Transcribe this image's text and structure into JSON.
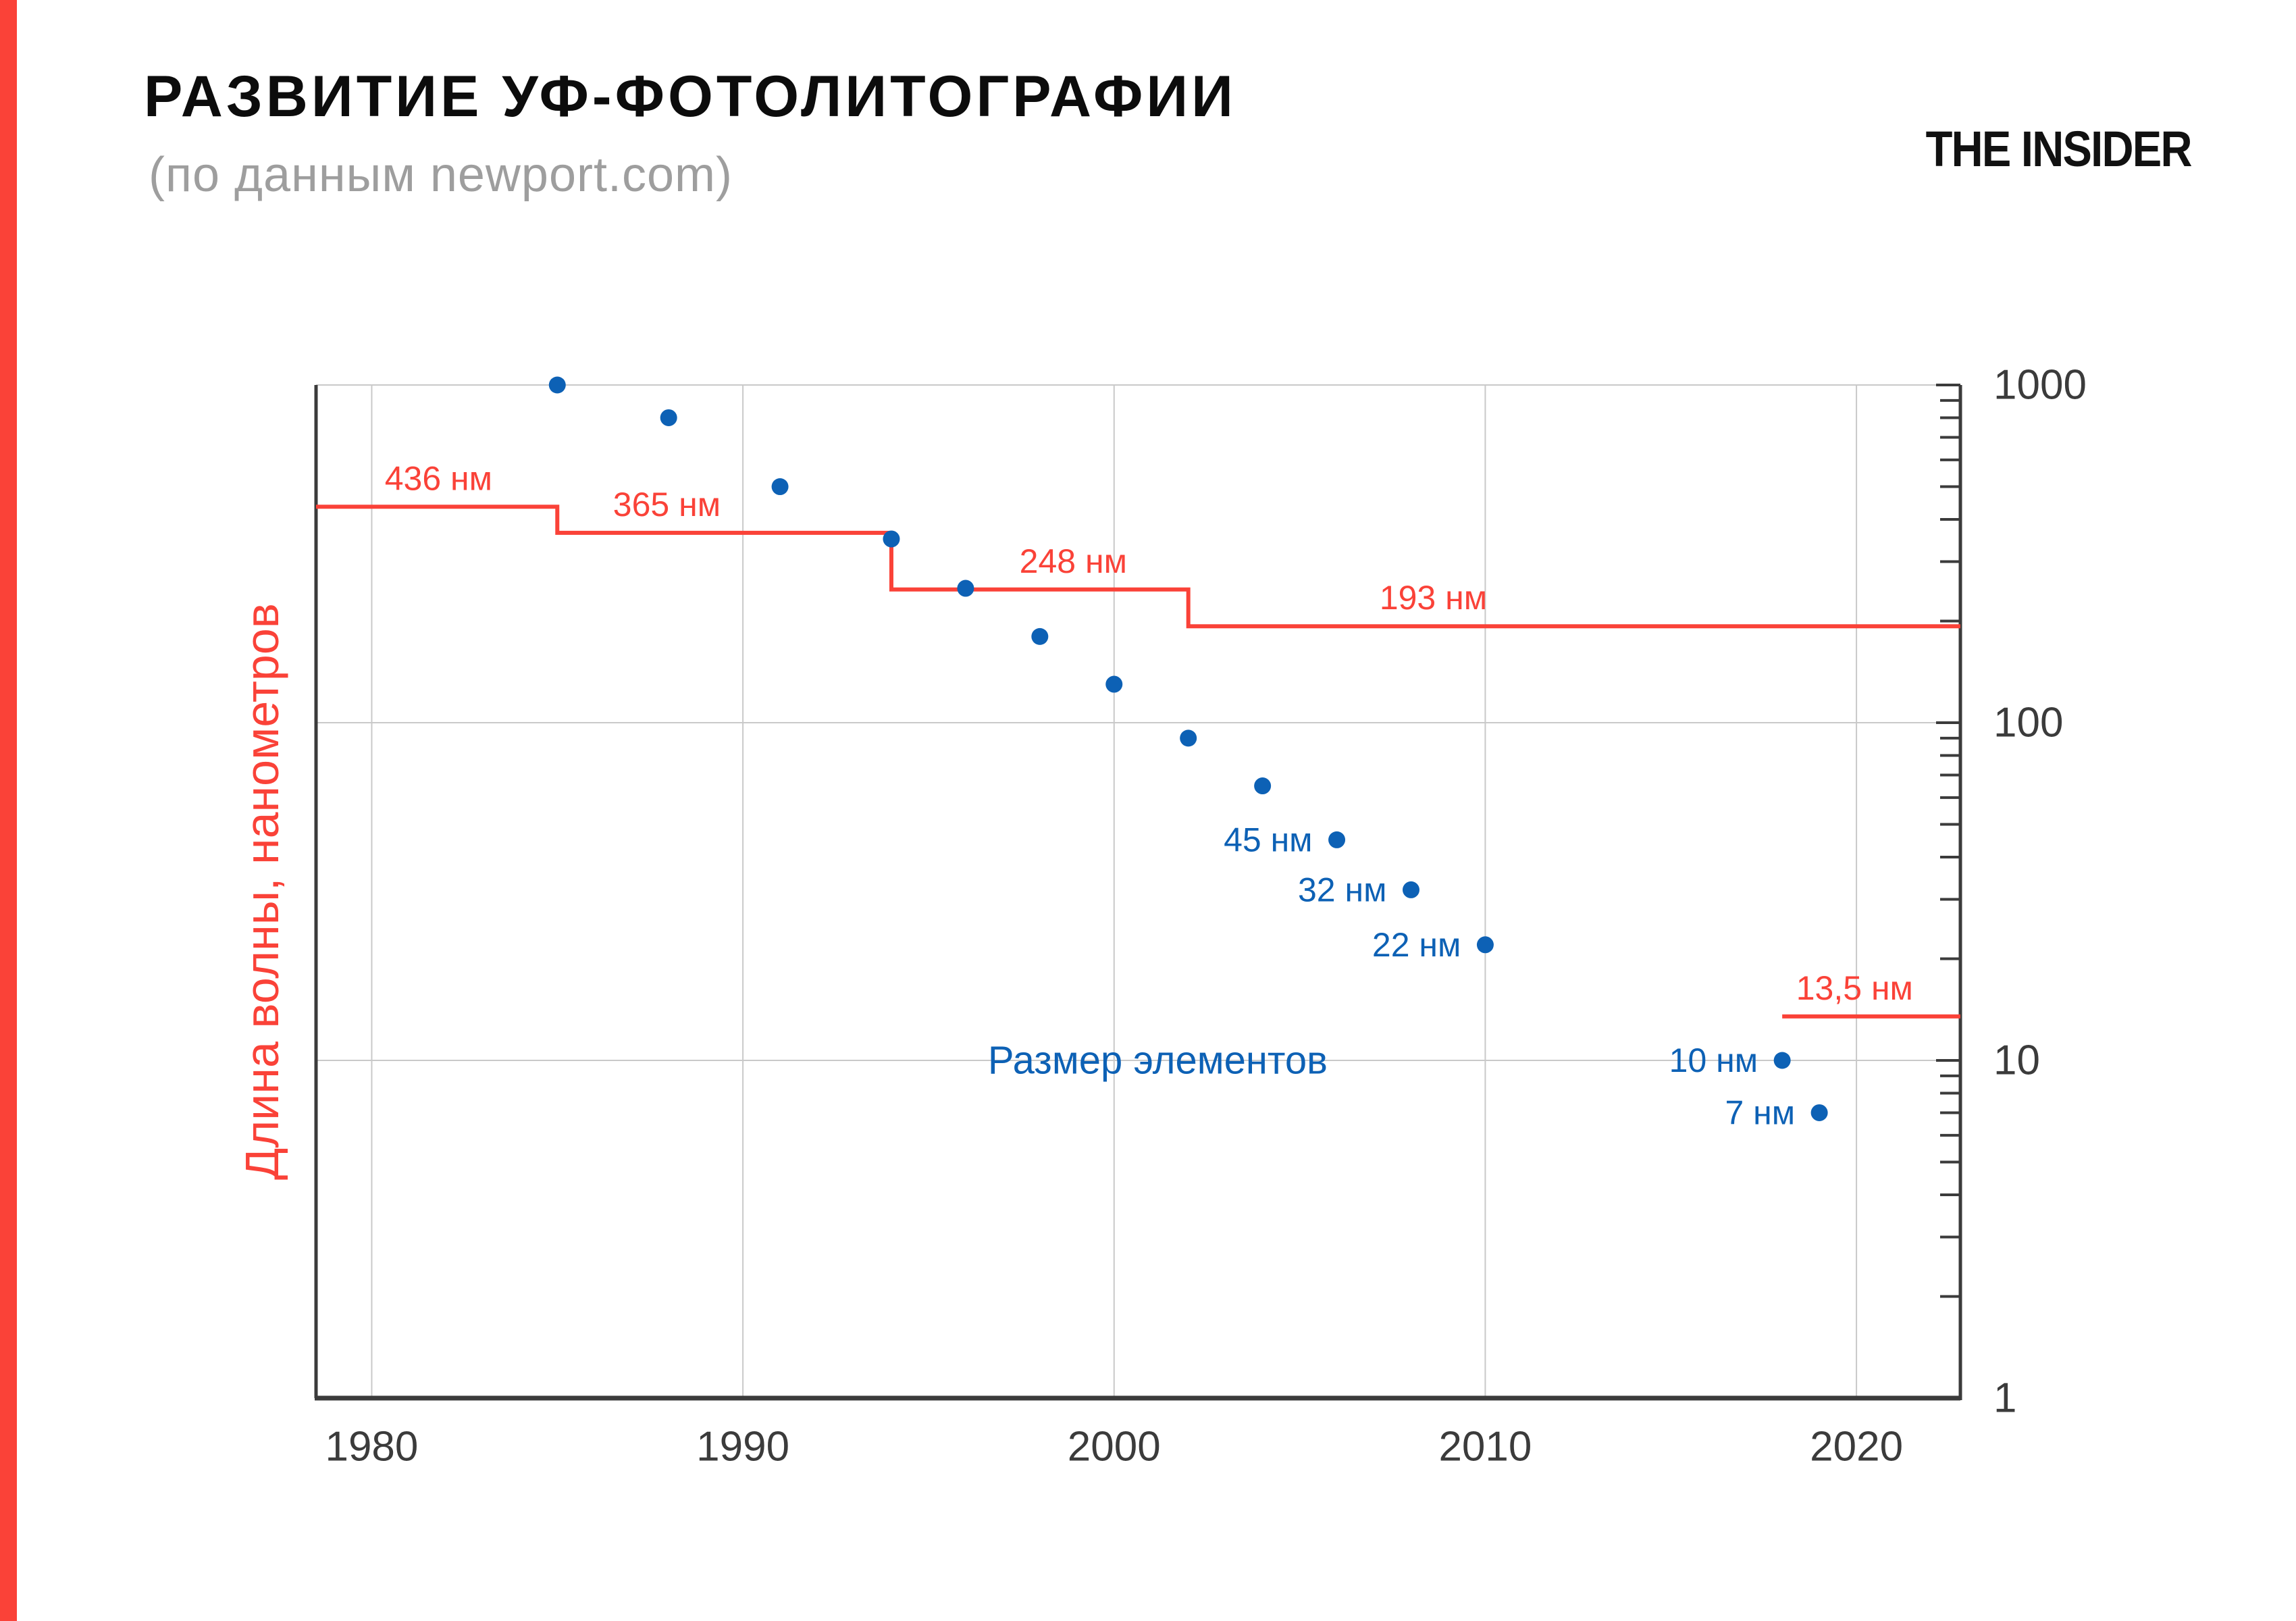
{
  "header": {
    "title": "РАЗВИТИЕ УФ-ФОТОЛИТОГРАФИИ",
    "subtitle": "(по данным newport.com)",
    "logo": "THE INSIDER"
  },
  "colors": {
    "accent_red": "#fa4238",
    "series_blue": "#0d61b5",
    "axis_dark": "#3b3b3b",
    "grid_gray": "#c9c9c9",
    "subtitle_gray": "#9e9e9e",
    "title_black": "#0c0c0c"
  },
  "chart_data": {
    "type": "scatter",
    "title": "РАЗВИТИЕ УФ-ФОТОЛИТОГРАФИИ",
    "subtitle": "(по данным newport.com)",
    "y_title": "Длина волны, нанометров",
    "x_axis": {
      "min": 1978.5,
      "max": 2022.8,
      "ticks": [
        1980,
        1990,
        2000,
        2010,
        2020
      ],
      "grid": true
    },
    "y_axis": {
      "scale": "log",
      "min": 1,
      "max": 1000,
      "ticks": [
        1000,
        100,
        10,
        1
      ],
      "unit": "нм",
      "grid": true,
      "side": "right"
    },
    "series": [
      {
        "name": "Длина волны",
        "type": "step",
        "color_key": "accent_red",
        "segments": [
          {
            "label": "436 нм",
            "value": 436,
            "from_year": 1978.5,
            "to_year": 1985,
            "label_year": 1981.8
          },
          {
            "label": "365 нм",
            "value": 365,
            "from_year": 1985,
            "to_year": 1994,
            "label_year": 1987.95
          },
          {
            "label": "248 нм",
            "value": 248,
            "from_year": 1994,
            "to_year": 2002,
            "label_year": 1998.9
          },
          {
            "label": "193 нм",
            "value": 193,
            "from_year": 2002,
            "to_year": 2022.8,
            "label_year": 2008.6
          },
          {
            "label": "13,5 нм",
            "value": 13.5,
            "from_year": 2018,
            "to_year": 2022.8,
            "label_year": 2019.95
          }
        ]
      },
      {
        "name": "Размер элементов",
        "type": "scatter",
        "color_key": "series_blue",
        "points": [
          {
            "year": 1985,
            "value": 1000
          },
          {
            "year": 1988,
            "value": 800
          },
          {
            "year": 1991,
            "value": 500
          },
          {
            "year": 1994,
            "value": 350
          },
          {
            "year": 1996,
            "value": 250
          },
          {
            "year": 1998,
            "value": 180
          },
          {
            "year": 2000,
            "value": 130
          },
          {
            "year": 2002,
            "value": 90
          },
          {
            "year": 2004,
            "value": 65
          },
          {
            "year": 2006,
            "value": 45,
            "label": "45 нм"
          },
          {
            "year": 2008,
            "value": 32,
            "label": "32 нм"
          },
          {
            "year": 2010,
            "value": 22,
            "label": "22 нм"
          },
          {
            "year": 2018,
            "value": 10,
            "label": "10 нм"
          },
          {
            "year": 2019,
            "value": 7,
            "label": "7 нм"
          }
        ],
        "annotation": {
          "text": "Размер элементов",
          "year": 1996.6,
          "value": 10
        }
      }
    ]
  }
}
